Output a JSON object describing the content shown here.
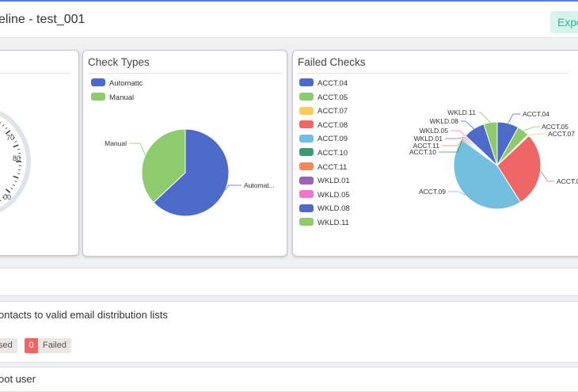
{
  "header": {
    "title": "eline - test_001",
    "export_label": "Expo"
  },
  "gauge": {
    "ticks": [
      "70",
      "80",
      "00"
    ],
    "value_percent": null
  },
  "check_types": {
    "title": "Check Types",
    "legend": [
      {
        "label": "Automatic",
        "color": "#4e6ac8"
      },
      {
        "label": "Manual",
        "color": "#8fca6e"
      }
    ],
    "chart_data": {
      "type": "pie",
      "labels": [
        "Automatic",
        "Manual"
      ],
      "values": [
        63,
        37
      ],
      "colors": [
        "#4e6ac8",
        "#8fca6e"
      ],
      "slice_labels": [
        "Automat...",
        "Manual"
      ]
    }
  },
  "failed_checks": {
    "title": "Failed Checks",
    "legend": [
      {
        "label": "ACCT.04",
        "color": "#4e6ac8"
      },
      {
        "label": "ACCT.05",
        "color": "#8fca6e"
      },
      {
        "label": "ACCT.07",
        "color": "#fbc95c"
      },
      {
        "label": "ACCT.08",
        "color": "#ee6666"
      },
      {
        "label": "ACCT.09",
        "color": "#74bfe0"
      },
      {
        "label": "ACCT.10",
        "color": "#3a9a73"
      },
      {
        "label": "ACCT.11",
        "color": "#f5885a"
      },
      {
        "label": "WKLD.01",
        "color": "#9a62bb"
      },
      {
        "label": "WKLD.05",
        "color": "#ea77cc"
      },
      {
        "label": "WKLD.08",
        "color": "#4e6ac8"
      },
      {
        "label": "WKLD.11",
        "color": "#8fca6e"
      }
    ],
    "chart_data": {
      "type": "pie",
      "labels": [
        "ACCT.04",
        "ACCT.05",
        "ACCT.07",
        "ACCT.08",
        "ACCT.09",
        "ACCT.10",
        "ACCT.11",
        "WKLD.01",
        "WKLD.05",
        "WKLD.08",
        "WKLD.11"
      ],
      "values": [
        8,
        4.5,
        0.5,
        28,
        44,
        0.5,
        0.5,
        0.5,
        0.5,
        8,
        5
      ],
      "colors": [
        "#4e6ac8",
        "#8fca6e",
        "#fbc95c",
        "#ee6666",
        "#74bfe0",
        "#3a9a73",
        "#f5885a",
        "#9a62bb",
        "#ea77cc",
        "#4e6ac8",
        "#8fca6e"
      ],
      "slice_labels": [
        "ACCT.04",
        "ACCT.05",
        "ACCT.07",
        "ACCT.0",
        "ACCT.09",
        "ACCT.10",
        "ACCT.11",
        "WKLD.01",
        "WKLD.05",
        "WKLD.08",
        "WKLD.11"
      ]
    }
  },
  "checks": [
    {
      "title": "ontacts to valid email distribution lists",
      "passed_label": "sed",
      "failed_count": "0",
      "failed_label": "Failed"
    },
    {
      "title": "oot user"
    }
  ]
}
